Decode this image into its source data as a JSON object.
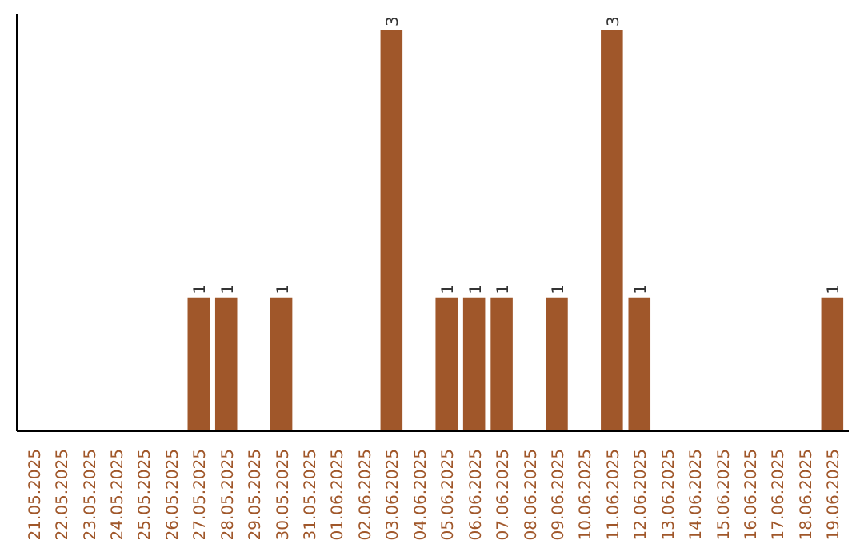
{
  "chart_data": {
    "type": "bar",
    "categories": [
      "21.05.2025",
      "22.05.2025",
      "23.05.2025",
      "24.05.2025",
      "25.05.2025",
      "26.05.2025",
      "27.05.2025",
      "28.05.2025",
      "29.05.2025",
      "30.05.2025",
      "31.05.2025",
      "01.06.2025",
      "02.06.2025",
      "03.06.2025",
      "04.06.2025",
      "05.06.2025",
      "06.06.2025",
      "07.06.2025",
      "08.06.2025",
      "09.06.2025",
      "10.06.2025",
      "11.06.2025",
      "12.06.2025",
      "13.06.2025",
      "14.06.2025",
      "15.06.2025",
      "16.06.2025",
      "17.06.2025",
      "18.06.2025",
      "19.06.2025"
    ],
    "values": [
      0,
      0,
      0,
      0,
      0,
      0,
      1,
      1,
      0,
      1,
      0,
      0,
      0,
      3,
      0,
      1,
      1,
      1,
      0,
      1,
      0,
      3,
      1,
      0,
      0,
      0,
      0,
      0,
      0,
      1
    ],
    "value_labels": [
      null,
      null,
      null,
      null,
      null,
      null,
      "1",
      "1",
      null,
      "1",
      null,
      null,
      null,
      "3",
      null,
      "1",
      "1",
      "1",
      null,
      "1",
      null,
      "3",
      "1",
      null,
      null,
      null,
      null,
      null,
      null,
      "1"
    ],
    "color": "#a0572a",
    "tick_labels": "x",
    "grid": false
  }
}
